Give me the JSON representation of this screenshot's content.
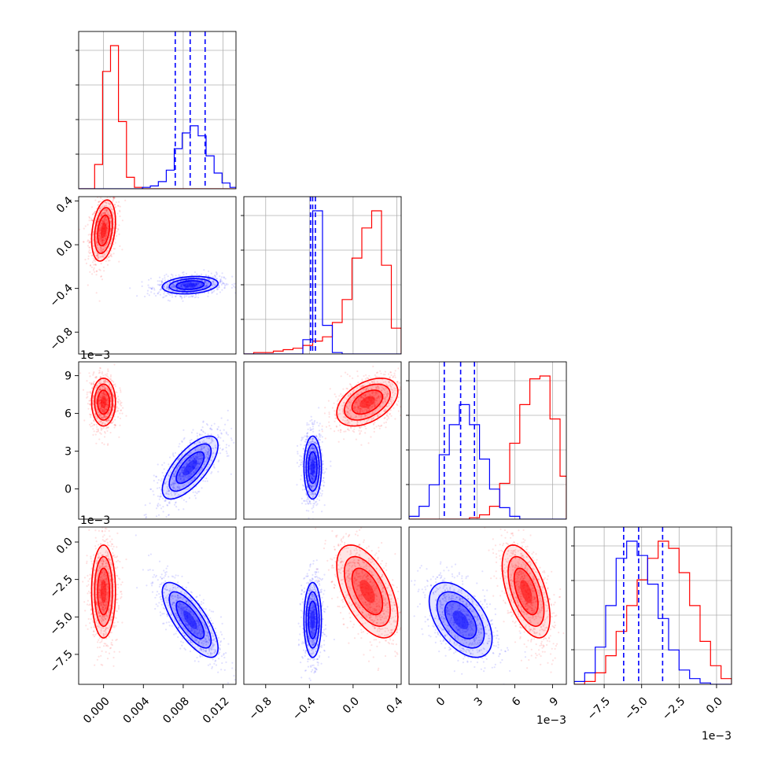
{
  "chart_data": {
    "type": "corner",
    "parameters": [
      {
        "ticks": [
          0.0,
          0.004,
          0.008,
          0.012
        ],
        "tick_labels": [
          "0.000",
          "0.004",
          "0.008",
          "0.012"
        ],
        "lim": [
          -0.0025,
          0.0133
        ],
        "offset_label": ""
      },
      {
        "ticks": [
          -0.8,
          -0.4,
          0.0,
          0.4
        ],
        "tick_labels": [
          "−0.8",
          "−0.4",
          "0.0",
          "0.4"
        ],
        "lim": [
          -1.0,
          0.44
        ],
        "offset_label": ""
      },
      {
        "ticks": [
          0,
          3,
          6,
          9
        ],
        "tick_labels": [
          "0",
          "3",
          "6",
          "9"
        ],
        "lim": [
          -2.4,
          10.1
        ],
        "offset_label": "1e−3"
      },
      {
        "ticks": [
          -7.5,
          -5.0,
          -2.5,
          0.0
        ],
        "tick_labels": [
          "−7.5",
          "−5.0",
          "−2.5",
          "0.0"
        ],
        "lim": [
          -9.5,
          1.0
        ],
        "offset_label": "1e−3"
      }
    ],
    "series": [
      {
        "color": "#ff0000",
        "centers": [
          0.0,
          0.13,
          6.9,
          -3.3
        ],
        "sigmas": [
          0.0006,
          0.14,
          0.95,
          1.55
        ],
        "correlations": {
          "0-1": 0.3,
          "0-2": 0.0,
          "0-3": 0.0,
          "1-2": 0.45,
          "1-3": -0.55,
          "2-3": -0.55
        }
      },
      {
        "color": "#0000ff",
        "centers": [
          0.0087,
          -0.37,
          1.7,
          -5.2
        ],
        "sigmas": [
          0.0014,
          0.04,
          1.25,
          1.25
        ],
        "correlations": {
          "0-1": 0.2,
          "0-2": 0.7,
          "0-3": -0.75,
          "1-2": 0.0,
          "1-3": 0.0,
          "2-3": -0.5
        },
        "quantiles": [
          [
            0.0072,
            0.0087,
            0.0102
          ],
          [
            -0.39,
            -0.37,
            -0.345
          ],
          [
            0.4,
            1.7,
            2.8
          ],
          [
            -6.2,
            -5.2,
            -3.6
          ]
        ]
      }
    ],
    "histograms": [
      {
        "bin_edges": [
          -0.0025,
          -0.0017,
          -0.0009,
          -0.0001,
          0.0007,
          0.0015,
          0.0023,
          0.0031,
          0.0039,
          0.0047,
          0.0055,
          0.0063,
          0.0071,
          0.0079,
          0.0087,
          0.0095,
          0.0103,
          0.0111,
          0.0119,
          0.0127,
          0.0133
        ],
        "red": [
          0,
          0,
          17,
          82,
          100,
          47,
          8,
          1,
          0,
          0,
          0,
          0,
          0,
          0,
          0,
          0,
          0,
          0,
          0,
          0
        ],
        "blue": [
          0,
          0,
          0,
          0,
          0,
          0,
          0,
          0,
          1,
          2,
          5,
          13,
          28,
          39,
          44,
          37,
          23,
          11,
          4,
          1
        ]
      },
      {
        "bin_edges": [
          -1.0,
          -0.91,
          -0.82,
          -0.73,
          -0.64,
          -0.55,
          -0.46,
          -0.37,
          -0.28,
          -0.19,
          -0.1,
          -0.01,
          0.08,
          0.17,
          0.26,
          0.35,
          0.44
        ],
        "red": [
          0,
          1,
          1,
          2,
          3,
          4,
          6,
          9,
          12,
          22,
          38,
          67,
          88,
          100,
          62,
          18
        ],
        "blue": [
          0,
          0,
          0,
          0,
          0,
          0,
          10,
          100,
          20,
          1,
          0,
          0,
          0,
          0,
          0,
          0
        ]
      },
      {
        "bin_edges": [
          -2.4,
          -1.6,
          -0.8,
          0.0,
          0.8,
          1.6,
          2.4,
          3.2,
          4.0,
          4.8,
          5.6,
          6.4,
          7.2,
          8.0,
          8.8,
          9.6,
          10.1
        ],
        "red": [
          0,
          0,
          0,
          0,
          0,
          0,
          1,
          3,
          9,
          25,
          53,
          80,
          98,
          100,
          70,
          30
        ],
        "blue": [
          2,
          9,
          24,
          45,
          66,
          80,
          66,
          42,
          21,
          8,
          2,
          0,
          0,
          0,
          0,
          0
        ]
      },
      {
        "bin_edges": [
          -9.5,
          -8.8,
          -8.1,
          -7.4,
          -6.7,
          -6.0,
          -5.3,
          -4.6,
          -3.9,
          -3.2,
          -2.5,
          -1.8,
          -1.1,
          -0.4,
          0.3,
          1.0
        ],
        "red": [
          0,
          2,
          8,
          20,
          37,
          55,
          73,
          88,
          100,
          95,
          78,
          55,
          30,
          13,
          4
        ],
        "blue": [
          2,
          8,
          26,
          55,
          88,
          100,
          90,
          70,
          46,
          24,
          10,
          4,
          1,
          0,
          0
        ]
      }
    ]
  }
}
